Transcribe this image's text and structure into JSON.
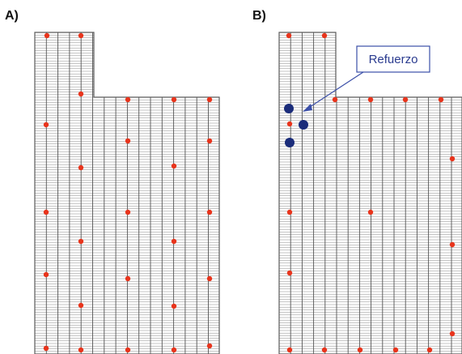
{
  "panels": [
    {
      "id": "A",
      "label": "A)"
    },
    {
      "id": "B",
      "label": "B)"
    }
  ],
  "callout": {
    "text": "Refuerzo"
  },
  "colors": {
    "grid_line": "#8a8a8a",
    "outline": "#5a5a5a",
    "point_red": "#e8341c",
    "point_blue": "#1a2c7a",
    "callout_border": "#3b4fa8",
    "callout_text": "#2a3b8f"
  },
  "icons": {
    "reinforcement": "filled-circle-icon",
    "anchor": "dot-icon"
  }
}
